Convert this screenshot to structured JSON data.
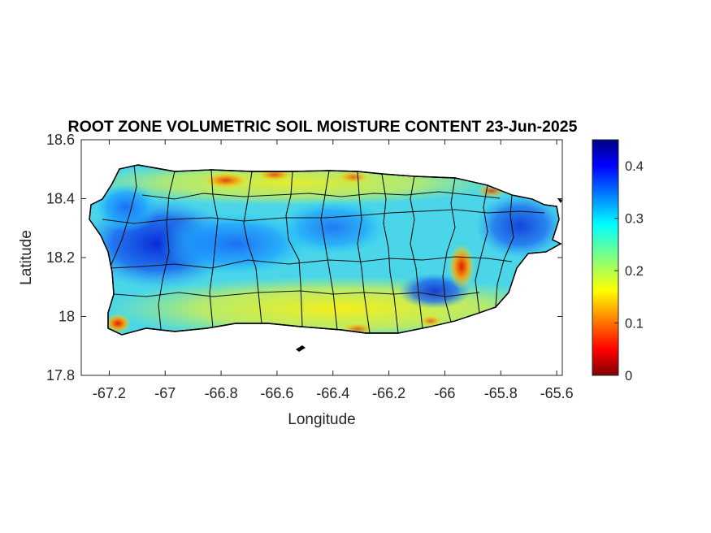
{
  "title": "ROOT ZONE VOLUMETRIC SOIL MOISTURE CONTENT 23-Jun-2025",
  "xlabel": "Longitude",
  "ylabel": "Latitude",
  "x_ticks": [
    "-67.2",
    "-67",
    "-66.8",
    "-66.6",
    "-66.4",
    "-66.2",
    "-66",
    "-65.8",
    "-65.6"
  ],
  "y_ticks": [
    "17.8",
    "18",
    "18.2",
    "18.4",
    "18.6"
  ],
  "colorbar_ticks": [
    "0",
    "0.1",
    "0.2",
    "0.3",
    "0.4"
  ],
  "colorbar_colormap": "jet",
  "colors": {
    "axis": "#262626",
    "boundary": "#000000"
  },
  "map": {
    "region": "Puerto Rico",
    "variable": "root zone volumetric soil moisture content",
    "date": "23-Jun-2025",
    "lon_range": [
      -67.3,
      -65.58
    ],
    "lat_range": [
      17.8,
      18.6
    ],
    "value_range": [
      0,
      0.45
    ],
    "features": [
      {
        "name": "west-interior",
        "level": 0.4
      },
      {
        "name": "central-cordillera",
        "level": 0.34
      },
      {
        "name": "east-el-yunque",
        "level": 0.38
      },
      {
        "name": "southeast-valley",
        "level": 0.38
      },
      {
        "name": "south-coast",
        "level": 0.2
      },
      {
        "name": "north-coast",
        "level": 0.22
      },
      {
        "name": "east-central-dry-patch",
        "level": 0.1
      },
      {
        "name": "southwest-corner",
        "level": 0.08
      }
    ]
  }
}
